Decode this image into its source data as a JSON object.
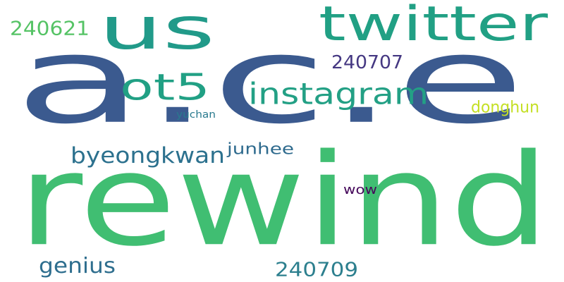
{
  "words": [
    {
      "id": "word-ace",
      "text": "a.c.e",
      "color": "#3b5a8f"
    },
    {
      "id": "word-rewind",
      "text": "rewind",
      "color": "#40be72"
    },
    {
      "id": "word-us",
      "text": "us",
      "color": "#219a89"
    },
    {
      "id": "word-twitter",
      "text": "twitter",
      "color": "#21a084"
    },
    {
      "id": "word-instagram",
      "text": "instagram",
      "color": "#23a085"
    },
    {
      "id": "word-ot5",
      "text": "ot5",
      "color": "#21a084"
    },
    {
      "id": "word-240621",
      "text": "240621",
      "color": "#55c365"
    },
    {
      "id": "word-240707",
      "text": "240707",
      "color": "#453882"
    },
    {
      "id": "word-byeongkwan",
      "text": "byeongkwan",
      "color": "#2c718e"
    },
    {
      "id": "word-junhee",
      "text": "junhee",
      "color": "#2f6b8e"
    },
    {
      "id": "word-donghun",
      "text": "donghun",
      "color": "#c4df24"
    },
    {
      "id": "word-yuchan",
      "text": "yuchan",
      "color": "#297a8e"
    },
    {
      "id": "word-wow",
      "text": "wow",
      "color": "#46095b"
    },
    {
      "id": "word-genius",
      "text": "genius",
      "color": "#2e6e8e"
    },
    {
      "id": "word-240709",
      "text": "240709",
      "color": "#2c7f8e"
    }
  ]
}
